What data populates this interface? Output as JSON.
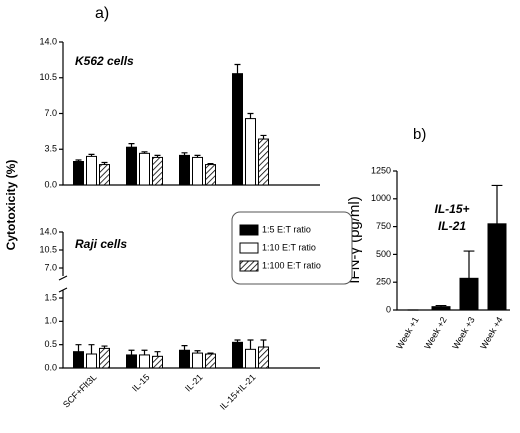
{
  "panels": {
    "a": "a)",
    "b": "b)"
  },
  "chart_data": [
    {
      "type": "bar",
      "title": "K562 cells",
      "ylabel": "Cytotoxicity (%)",
      "ylim": [
        0,
        14
      ],
      "yticks": [
        {
          "value": 0,
          "label": "0.0"
        },
        3.5,
        {
          "value": 7,
          "label": "7.0"
        },
        10.5,
        {
          "value": 14,
          "label": "14.0"
        }
      ],
      "legend": "center-right",
      "series": [
        {
          "name": "1:5 E:T ratio",
          "color": "#000000",
          "values": [
            2.3,
            3.7,
            2.9,
            10.9
          ],
          "errors": [
            0.15,
            0.35,
            0.25,
            0.9
          ]
        },
        {
          "name": "1:10 E:T ratio",
          "color": "#ffffff",
          "values": [
            2.8,
            3.1,
            2.7,
            6.5
          ],
          "errors": [
            0.2,
            0.15,
            0.2,
            0.5
          ]
        },
        {
          "name": "1:100 E:T ratio",
          "color": "#ffffff",
          "pattern": "diagonal",
          "values": [
            2.0,
            2.7,
            2.0,
            4.5
          ],
          "errors": [
            0.2,
            0.2,
            0.1,
            0.35
          ]
        }
      ]
    },
    {
      "type": "bar",
      "title": "Raji cells",
      "categories": [
        "SCF+Flt3L",
        "IL-15",
        "IL-21",
        "IL-15+IL-21"
      ],
      "ylim": [
        0,
        1.5
      ],
      "yticks": [
        {
          "value": 0,
          "label": "0.0"
        },
        0.5,
        {
          "value": 1,
          "label": "1.0"
        },
        1.5
      ],
      "upper_ylim": [
        7,
        14
      ],
      "upper_yticks": [
        {
          "value": 7,
          "label": "7.0"
        },
        10.5,
        {
          "value": 14,
          "label": "14.0"
        }
      ],
      "series": [
        {
          "color": "#000000",
          "values": [
            0.35,
            0.28,
            0.38,
            0.55
          ],
          "errors": [
            0.15,
            0.1,
            0.1,
            0.05
          ]
        },
        {
          "color": "#ffffff",
          "values": [
            0.3,
            0.28,
            0.32,
            0.4
          ],
          "errors": [
            0.2,
            0.1,
            0.05,
            0.2
          ]
        },
        {
          "color": "#ffffff",
          "pattern": "diagonal",
          "values": [
            0.42,
            0.25,
            0.3,
            0.45
          ],
          "errors": [
            0.05,
            0.1,
            0.02,
            0.15
          ]
        }
      ]
    },
    {
      "type": "bar",
      "annotation": [
        "IL-15+",
        "IL-21"
      ],
      "ylabel": "IFN-γ (pg/ml)",
      "categories": [
        "Week +1",
        "Week +2",
        "Week +3",
        "Week +4"
      ],
      "values": [
        0,
        30,
        285,
        775
      ],
      "errors": [
        0,
        10,
        245,
        345
      ],
      "color": "#000000",
      "ylim": [
        0,
        1250
      ],
      "yticks": [
        0,
        250,
        500,
        750,
        1000,
        1250
      ]
    }
  ]
}
